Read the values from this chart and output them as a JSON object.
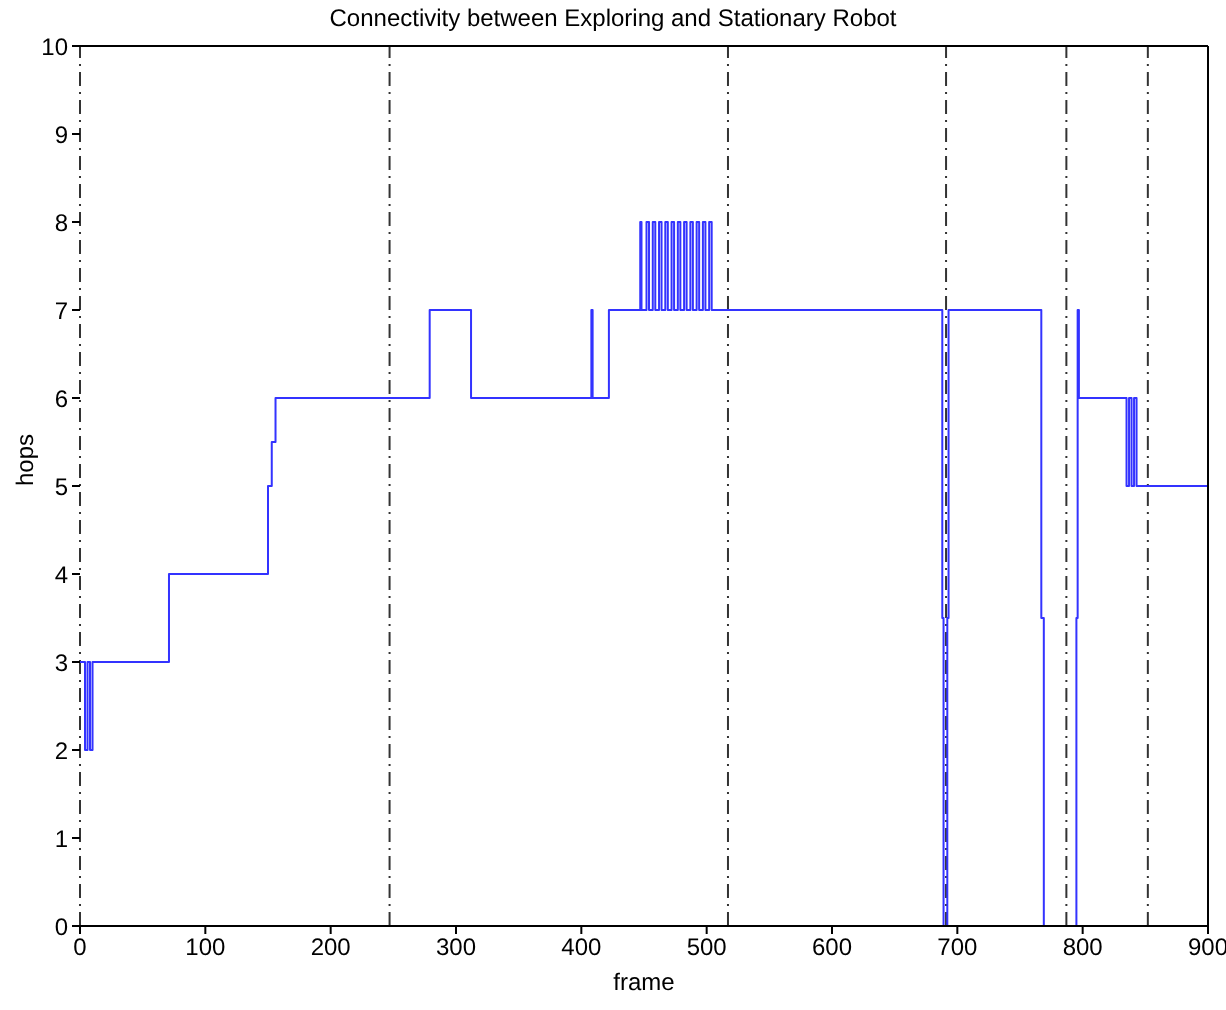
{
  "chart_data": {
    "type": "step",
    "title": "Connectivity between Exploring and Stationary Robot",
    "xlabel": "frame",
    "ylabel": "hops",
    "x": [
      0,
      4,
      6,
      8,
      10,
      71,
      150,
      153,
      156,
      279,
      312,
      408,
      409,
      422,
      447,
      448,
      452,
      454,
      457,
      459,
      462,
      464,
      467,
      469,
      472,
      474,
      477,
      479,
      482,
      484,
      487,
      489,
      492,
      494,
      497,
      499,
      502,
      504,
      688,
      689,
      692,
      693,
      767,
      769,
      795,
      796,
      797,
      835,
      837,
      839,
      841,
      843,
      900
    ],
    "series": [
      {
        "color": "#3333ff",
        "values": [
          3,
          2,
          3,
          2,
          3,
          4,
          5,
          5.5,
          6,
          7,
          6,
          7,
          6,
          7,
          8,
          7,
          8,
          7,
          8,
          7,
          8,
          7,
          8,
          7,
          8,
          7,
          8,
          7,
          8,
          7,
          8,
          7,
          8,
          7,
          8,
          7,
          8,
          7,
          3.5,
          0,
          3.5,
          7,
          3.5,
          0,
          3.5,
          7,
          6,
          5,
          6,
          5,
          6,
          5,
          5
        ]
      }
    ],
    "xlim": [
      0,
      900
    ],
    "xticks": [
      0,
      100,
      200,
      300,
      400,
      500,
      600,
      700,
      800,
      900
    ],
    "ylim": [
      0,
      10
    ],
    "yticks": [
      0,
      1,
      2,
      3,
      4,
      5,
      6,
      7,
      8,
      9,
      10
    ],
    "ref_lines": [
      {
        "axis": "x",
        "value": 0,
        "color": "#333333",
        "line_style": "dashed"
      },
      {
        "axis": "x",
        "value": 247,
        "color": "#333333",
        "line_style": "dashed"
      },
      {
        "axis": "x",
        "value": 517,
        "color": "#333333",
        "line_style": "dashed"
      },
      {
        "axis": "x",
        "value": 691,
        "color": "#333333",
        "line_style": "dashed"
      },
      {
        "axis": "x",
        "value": 787,
        "color": "#333333",
        "line_style": "dashed"
      },
      {
        "axis": "x",
        "value": 852,
        "color": "#333333",
        "line_style": "dashed"
      }
    ],
    "grid": false,
    "legend": false,
    "marker": "none",
    "line_style": "solid"
  }
}
